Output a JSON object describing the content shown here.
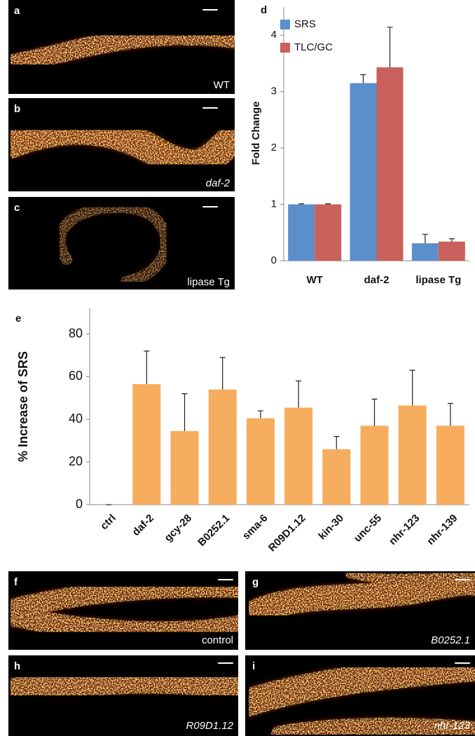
{
  "images": [
    {
      "letter": "a",
      "caption": "WT"
    },
    {
      "letter": "b",
      "caption": "daf-2"
    },
    {
      "letter": "c",
      "caption": "lipase Tg"
    },
    {
      "letter": "f",
      "caption": "control"
    },
    {
      "letter": "g",
      "caption": "B0252.1"
    },
    {
      "letter": "h",
      "caption": "R09D1.12"
    },
    {
      "letter": "i",
      "caption": "nhr-123"
    }
  ],
  "chart_data": [
    {
      "type": "bar",
      "panel": "d",
      "ylabel": "Fold Change",
      "categories": [
        "WT",
        "daf-2",
        "lipase Tg"
      ],
      "series": [
        {
          "name": "SRS",
          "color": "#5a8fcc",
          "values": [
            1.0,
            3.15,
            0.31
          ],
          "errors": [
            0.01,
            0.15,
            0.16
          ]
        },
        {
          "name": "TLC/GC",
          "color": "#c9605c",
          "values": [
            1.0,
            3.43,
            0.34
          ],
          "errors": [
            0.01,
            0.71,
            0.05
          ]
        }
      ],
      "ylim": [
        0,
        4.5
      ],
      "yticks": [
        0,
        1,
        2,
        3,
        4
      ],
      "legend": "upper left"
    },
    {
      "type": "bar",
      "panel": "e",
      "ylabel": "% Increase of SRS",
      "categories": [
        "ctrl",
        "daf-2",
        "gcy-28",
        "B0252.1",
        "sma-6",
        "R09D1.12",
        "kin-30",
        "unc-55",
        "nhr-123",
        "nhr-139"
      ],
      "series": [
        {
          "color": "#f6ad5e",
          "values": [
            0,
            56.5,
            34.5,
            54,
            40.5,
            45.5,
            26,
            37,
            46.5,
            37
          ],
          "errors": [
            0,
            15.5,
            17.5,
            15,
            3.5,
            12.5,
            6,
            12.5,
            16.5,
            10.5
          ]
        }
      ],
      "ylim": [
        0,
        92
      ],
      "yticks": [
        0,
        20,
        40,
        60,
        80
      ]
    }
  ]
}
